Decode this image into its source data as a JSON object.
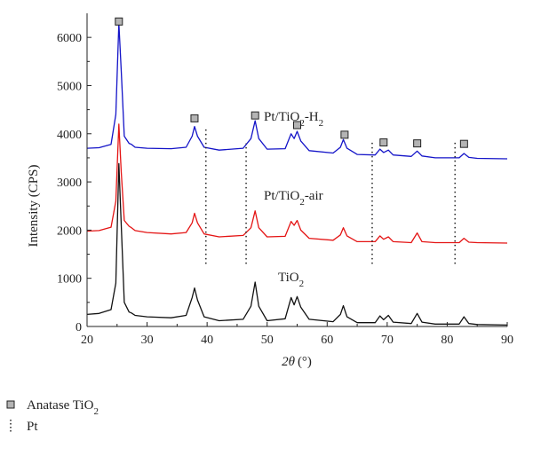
{
  "chart_data": {
    "type": "line",
    "xlabel_symbol": "2θ",
    "xlabel_unit": "(°)",
    "ylabel": "Intensity (CPS)",
    "xlim": [
      20,
      90
    ],
    "ylim": [
      0,
      6500
    ],
    "xticks": [
      "20",
      "30",
      "40",
      "50",
      "60",
      "70",
      "80",
      "90"
    ],
    "yticks": [
      "0",
      "1000",
      "2000",
      "3000",
      "4000",
      "5000",
      "6000"
    ],
    "grid": false,
    "series": [
      {
        "name_main": "Pt/TiO",
        "name_sub": "2",
        "name_tail": "-H",
        "name_sub2": "2",
        "color": "#1414c8",
        "baseline": 3700,
        "x": [
          20,
          22,
          24,
          24.8,
          25.3,
          25.7,
          26.2,
          27.0,
          27.4,
          28,
          30,
          34,
          36.5,
          37.5,
          37.9,
          38.4,
          39.5,
          42,
          46,
          47.3,
          48.0,
          48.6,
          50,
          53,
          54.0,
          54.5,
          55.0,
          55.6,
          57,
          61,
          62.2,
          62.7,
          63.3,
          65,
          68,
          68.8,
          69.4,
          70.2,
          71,
          74,
          75.0,
          75.8,
          78,
          82,
          82.8,
          83.6,
          85,
          90
        ],
        "y": [
          3700,
          3710,
          3780,
          4400,
          6300,
          5300,
          3950,
          3800,
          3780,
          3720,
          3700,
          3690,
          3720,
          3950,
          4150,
          3950,
          3720,
          3660,
          3700,
          3900,
          4270,
          3900,
          3680,
          3690,
          4000,
          3900,
          4050,
          3850,
          3650,
          3600,
          3720,
          3880,
          3700,
          3570,
          3560,
          3680,
          3610,
          3660,
          3560,
          3530,
          3640,
          3540,
          3500,
          3500,
          3590,
          3510,
          3490,
          3480
        ]
      },
      {
        "name": "Pt/TiO",
        "name_sub": "2",
        "name_tail": "-air",
        "color": "#e41414",
        "x": [
          20,
          22,
          24,
          24.8,
          25.3,
          25.7,
          26.2,
          27.0,
          27.4,
          28,
          30,
          34,
          36.5,
          37.5,
          37.9,
          38.4,
          39.5,
          42,
          46,
          47.3,
          48.0,
          48.6,
          50,
          53,
          54.0,
          54.5,
          55.0,
          55.6,
          57,
          61,
          62.2,
          62.7,
          63.3,
          65,
          68,
          68.8,
          69.4,
          70.2,
          71,
          74,
          75.0,
          75.8,
          78,
          82,
          82.8,
          83.6,
          85,
          90
        ],
        "y": [
          1980,
          1990,
          2060,
          2600,
          4200,
          3200,
          2200,
          2080,
          2050,
          1990,
          1950,
          1920,
          1950,
          2150,
          2350,
          2150,
          1920,
          1860,
          1890,
          2050,
          2400,
          2050,
          1860,
          1870,
          2180,
          2100,
          2200,
          2000,
          1830,
          1790,
          1900,
          2050,
          1880,
          1760,
          1760,
          1880,
          1810,
          1860,
          1760,
          1740,
          1940,
          1760,
          1740,
          1740,
          1830,
          1750,
          1740,
          1730
        ]
      },
      {
        "name_main": "TiO",
        "name_sub": "2",
        "color": "#111111",
        "x": [
          20,
          22,
          24,
          24.8,
          25.3,
          25.7,
          26.2,
          27.0,
          27.4,
          28,
          30,
          34,
          36.5,
          37.5,
          37.9,
          38.4,
          39.5,
          42,
          46,
          47.3,
          48.0,
          48.6,
          50,
          53,
          54.0,
          54.5,
          55.0,
          55.6,
          57,
          61,
          62.2,
          62.7,
          63.3,
          65,
          68,
          68.8,
          69.4,
          70.2,
          71,
          74,
          75.0,
          75.8,
          78,
          82,
          82.8,
          83.6,
          85,
          90
        ],
        "y": [
          250,
          270,
          350,
          900,
          3380,
          2100,
          500,
          300,
          280,
          230,
          200,
          180,
          230,
          600,
          800,
          550,
          200,
          120,
          150,
          420,
          920,
          420,
          120,
          160,
          600,
          450,
          620,
          400,
          150,
          100,
          250,
          430,
          200,
          80,
          80,
          220,
          140,
          230,
          90,
          60,
          270,
          90,
          50,
          50,
          200,
          60,
          40,
          30
        ]
      }
    ],
    "anatase_markers": [
      {
        "x": 25.3,
        "y": 6330
      },
      {
        "x": 37.9,
        "y": 4320
      },
      {
        "x": 48.0,
        "y": 4380
      },
      {
        "x": 55.0,
        "y": 4180
      },
      {
        "x": 62.9,
        "y": 3980
      },
      {
        "x": 69.4,
        "y": 3820
      },
      {
        "x": 75.0,
        "y": 3800
      },
      {
        "x": 82.8,
        "y": 3790
      }
    ],
    "pt_lines": [
      {
        "x": 39.8,
        "y1": 1300,
        "y2": 4150
      },
      {
        "x": 46.5,
        "y1": 1300,
        "y2": 3800
      },
      {
        "x": 67.5,
        "y1": 1300,
        "y2": 3850
      },
      {
        "x": 81.3,
        "y1": 1300,
        "y2": 3850
      }
    ],
    "legend": {
      "placement": "bottom-left",
      "anatase_main": "Anatase TiO",
      "anatase_sub": "2",
      "pt": "Pt"
    }
  }
}
